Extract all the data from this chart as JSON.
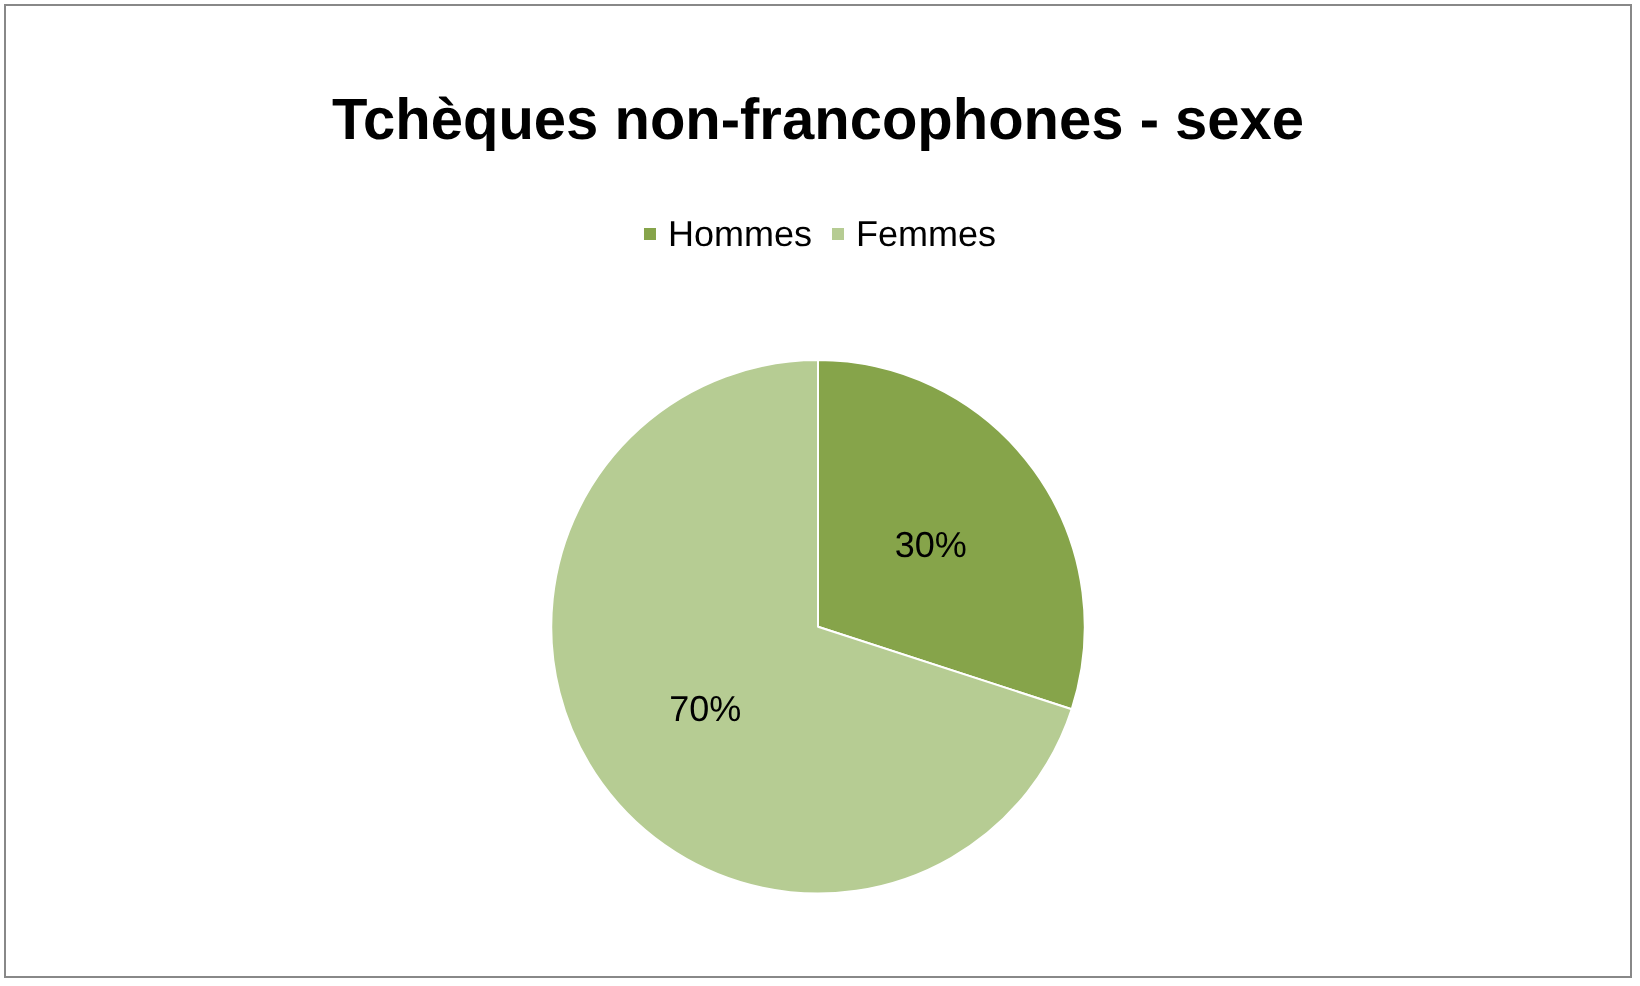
{
  "chart_data": {
    "type": "pie",
    "title": "Tchèques non-francophones - sexe",
    "categories": [
      "Hommes",
      "Femmes"
    ],
    "values": [
      30,
      70
    ],
    "colors": [
      "#86a44a",
      "#b6cc93"
    ],
    "value_labels": [
      "30%",
      "70%"
    ],
    "legend": "top"
  }
}
